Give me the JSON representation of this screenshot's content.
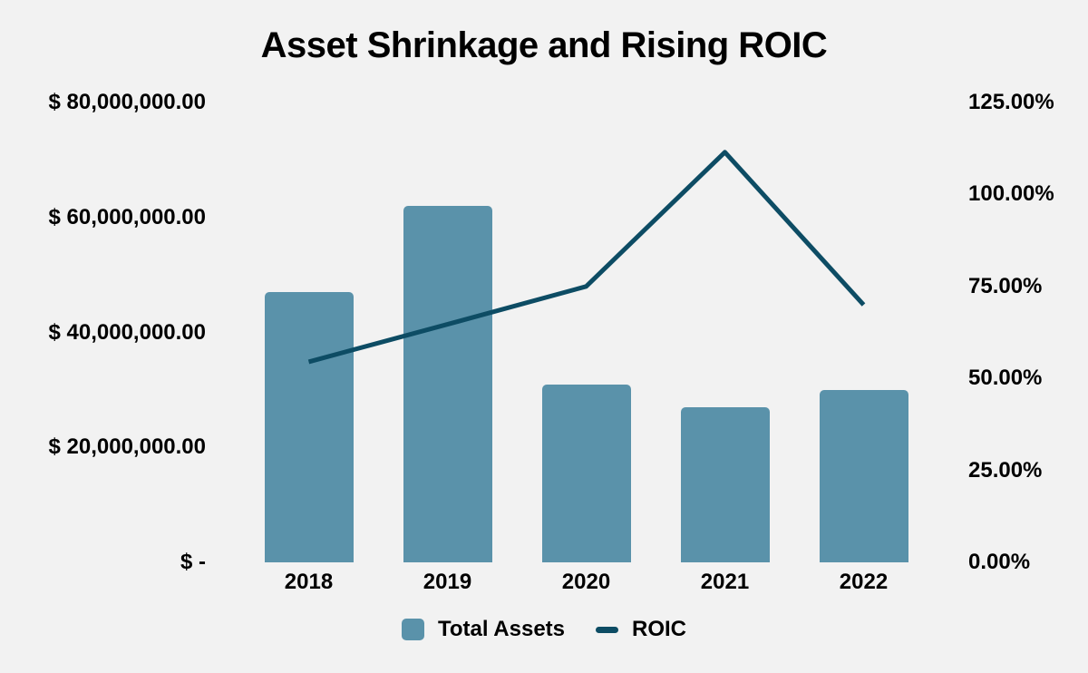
{
  "chart": {
    "title": "Asset Shrinkage and Rising ROIC",
    "background_color": "#f2f2f2",
    "text_color": "#000000"
  },
  "chart_data": {
    "type": "combo-bar-line",
    "title": "Asset Shrinkage and Rising ROIC",
    "categories": [
      "2018",
      "2019",
      "2020",
      "2021",
      "2022"
    ],
    "series": [
      {
        "name": "Total Assets",
        "type": "bar",
        "axis": "left",
        "color": "#5a92aa",
        "values": [
          47000000,
          62000000,
          31000000,
          27000000,
          30000000
        ]
      },
      {
        "name": "ROIC",
        "type": "line",
        "axis": "right",
        "color": "#0d4c64",
        "values_percent": [
          54.5,
          64.7,
          75.0,
          111.5,
          70.0
        ]
      }
    ],
    "left_axis": {
      "min": 0,
      "max": 80000000,
      "tick_values": [
        80000000,
        60000000,
        40000000,
        20000000,
        0
      ],
      "tick_labels": [
        "$ 80,000,000.00",
        "$ 60,000,000.00",
        "$ 40,000,000.00",
        "$ 20,000,000.00",
        "$ -"
      ]
    },
    "right_axis": {
      "min": 0,
      "max": 125,
      "unit": "percent",
      "tick_values": [
        125,
        100,
        75,
        50,
        25,
        0
      ],
      "tick_labels": [
        "125.00%",
        "100.00%",
        "75.00%",
        "50.00%",
        "25.00%",
        "0.00%"
      ]
    },
    "legend": {
      "position": "bottom",
      "entries": [
        "Total Assets",
        "ROIC"
      ]
    },
    "gridlines": false
  }
}
